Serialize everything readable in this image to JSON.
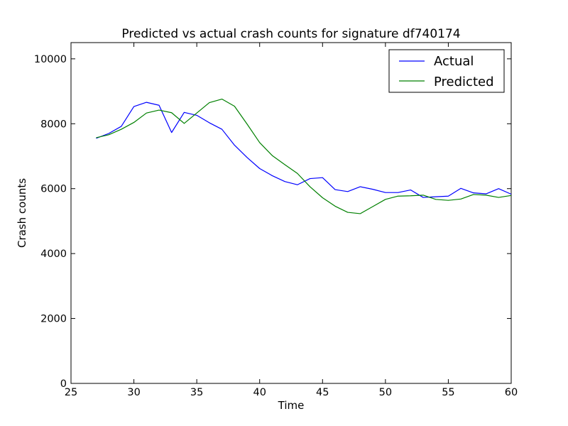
{
  "chart_data": {
    "type": "line",
    "title": "Predicted vs actual crash counts for signature df740174",
    "xlabel": "Time",
    "ylabel": "Crash counts",
    "xlim": [
      25,
      60
    ],
    "ylim": [
      0,
      10500
    ],
    "xticks": [
      25,
      30,
      35,
      40,
      45,
      50,
      55,
      60
    ],
    "yticks": [
      0,
      2000,
      4000,
      6000,
      8000,
      10000
    ],
    "xtick_labels": [
      "25",
      "30",
      "35",
      "40",
      "45",
      "50",
      "55",
      "60"
    ],
    "ytick_labels": [
      "0",
      "2000",
      "4000",
      "6000",
      "8000",
      "10000"
    ],
    "grid": false,
    "legend_position": "top-right",
    "x": [
      27,
      28,
      29,
      30,
      31,
      32,
      33,
      34,
      35,
      36,
      37,
      38,
      39,
      40,
      41,
      42,
      43,
      44,
      45,
      46,
      47,
      48,
      49,
      50,
      51,
      52,
      53,
      54,
      55,
      56,
      57,
      58,
      59,
      60
    ],
    "series": [
      {
        "name": "Actual",
        "color": "#0000ff",
        "values": [
          7550,
          7700,
          7920,
          8530,
          8660,
          8570,
          7730,
          8350,
          8260,
          8030,
          7830,
          7340,
          6960,
          6620,
          6400,
          6220,
          6120,
          6310,
          6340,
          5970,
          5910,
          6060,
          5980,
          5880,
          5880,
          5960,
          5730,
          5750,
          5770,
          6010,
          5870,
          5840,
          6000,
          5830
        ]
      },
      {
        "name": "Predicted",
        "color": "#008000",
        "values": [
          7570,
          7660,
          7830,
          8040,
          8330,
          8420,
          8340,
          8010,
          8330,
          8650,
          8760,
          8540,
          7990,
          7420,
          7020,
          6740,
          6470,
          6060,
          5720,
          5460,
          5270,
          5230,
          5450,
          5670,
          5770,
          5780,
          5800,
          5670,
          5640,
          5680,
          5820,
          5800,
          5730,
          5790
        ]
      }
    ]
  }
}
